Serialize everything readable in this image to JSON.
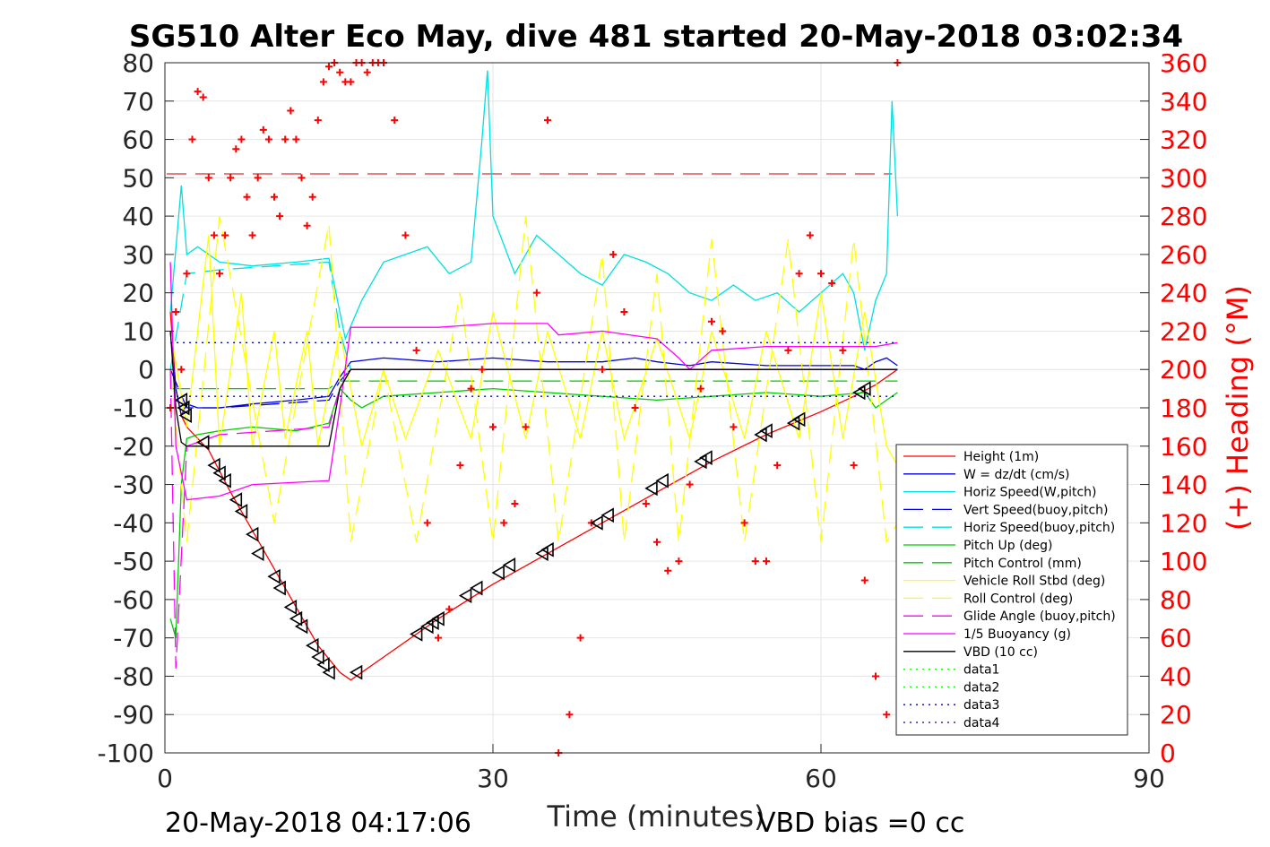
{
  "footer": {
    "timestamp": "20-May-2018 04:17:06",
    "vbd_bias": "VBD bias =0 cc"
  },
  "chart_data": {
    "type": "line",
    "title": "SG510 Alter Eco May, dive 481 started 20-May-2018 03:02:34",
    "xlabel": "Time (minutes)",
    "ylabel": "",
    "y2label": "(+) Heading (°M)",
    "xlim": [
      0,
      90
    ],
    "ylim": [
      -100,
      80
    ],
    "y2lim": [
      0,
      360
    ],
    "xticks": [
      0,
      30,
      60,
      90
    ],
    "yticks": [
      -100,
      -90,
      -80,
      -70,
      -60,
      -50,
      -40,
      -30,
      -20,
      -10,
      0,
      10,
      20,
      30,
      40,
      50,
      60,
      70,
      80
    ],
    "y2ticks": [
      0,
      20,
      40,
      60,
      80,
      100,
      120,
      140,
      160,
      180,
      200,
      220,
      240,
      260,
      280,
      300,
      320,
      340,
      360
    ],
    "grid": true,
    "legend_position": "lower-right",
    "reference_line": {
      "y2": 302,
      "color": "#c00000"
    },
    "colors": {
      "heading": "#ff0000",
      "right_axis": "#ff0000"
    },
    "series": [
      {
        "name": "Height (1m)",
        "color": "#ff0000",
        "style": "solid",
        "axis": "left",
        "x": [
          0.5,
          1,
          1.5,
          2,
          4,
          6,
          8,
          10,
          12,
          14,
          16,
          17,
          18,
          20,
          25,
          30,
          35,
          40,
          45,
          50,
          55,
          60,
          63,
          65,
          67
        ],
        "y": [
          15,
          -5,
          -12,
          -15,
          -21,
          -32,
          -42,
          -52,
          -62,
          -72,
          -79,
          -81,
          -79,
          -75,
          -65,
          -56,
          -48,
          -40,
          -32,
          -24,
          -17,
          -11,
          -7,
          -4,
          0
        ]
      },
      {
        "name": "W = dz/dt (cm/s)",
        "color": "#0000dd",
        "style": "solid",
        "axis": "left",
        "x": [
          0.5,
          1,
          1.5,
          2,
          3,
          5,
          8,
          12,
          15,
          16,
          17,
          20,
          25,
          30,
          35,
          40,
          43,
          45,
          48,
          50,
          55,
          60,
          63,
          64,
          65,
          66,
          67
        ],
        "y": [
          10,
          -5,
          -12,
          -9,
          -10,
          -10,
          -9,
          -8,
          -7,
          -2,
          2,
          3,
          2,
          3,
          2,
          2,
          3,
          2,
          1,
          2,
          1,
          1,
          1,
          0,
          2,
          3,
          1
        ]
      },
      {
        "name": "Horiz Speed(W,pitch)",
        "color": "#00e0e0",
        "style": "solid",
        "axis": "left",
        "x": [
          0.5,
          1.5,
          2,
          3,
          5,
          8,
          12,
          15,
          16,
          16.5,
          18,
          20,
          22,
          24,
          26,
          28,
          29,
          29.5,
          30,
          32,
          34,
          36,
          38,
          40,
          42,
          44,
          46,
          48,
          50,
          52,
          54,
          56,
          58,
          60,
          62,
          63,
          64,
          65,
          66,
          66.5,
          67
        ],
        "y": [
          15,
          48,
          30,
          32,
          28,
          27,
          28,
          29,
          15,
          8,
          18,
          28,
          30,
          32,
          25,
          28,
          60,
          78,
          40,
          25,
          35,
          30,
          25,
          22,
          30,
          28,
          25,
          20,
          18,
          22,
          18,
          20,
          15,
          20,
          25,
          20,
          5,
          18,
          25,
          70,
          40
        ]
      },
      {
        "name": "Vert Speed(buoy,pitch)",
        "color": "#0000dd",
        "style": "dashed",
        "axis": "left",
        "x": [
          0.5,
          2,
          5,
          10,
          15,
          16,
          17,
          30,
          45,
          60,
          67
        ],
        "y": [
          0,
          -10,
          -10,
          -9,
          -8,
          -3,
          0,
          0,
          0,
          0,
          0
        ]
      },
      {
        "name": "Horiz Speed(buoy,pitch)",
        "color": "#00e0e0",
        "style": "dashed",
        "axis": "left",
        "x": [
          0.5,
          2,
          5,
          10,
          15,
          16,
          17,
          30,
          45,
          60,
          67
        ],
        "y": [
          0,
          25,
          26,
          27,
          28,
          10,
          0,
          0,
          0,
          0,
          0
        ]
      },
      {
        "name": "Pitch Up (deg)",
        "color": "#00cc00",
        "style": "solid",
        "axis": "left",
        "x": [
          0.5,
          1,
          1.5,
          2,
          3,
          5,
          8,
          12,
          15,
          16,
          17,
          18,
          20,
          25,
          30,
          35,
          40,
          45,
          50,
          55,
          60,
          64,
          65,
          66,
          67
        ],
        "y": [
          -65,
          -70,
          -30,
          -18,
          -17,
          -16,
          -15,
          -16,
          -14,
          -5,
          -8,
          -10,
          -7,
          -6,
          -5,
          -6,
          -7,
          -8,
          -7,
          -6,
          -7,
          -6,
          -10,
          -8,
          -6
        ]
      },
      {
        "name": "Pitch Control (mm)",
        "color": "#00cc00",
        "style": "dashed",
        "axis": "left",
        "x": [
          0.5,
          2,
          15,
          16,
          30,
          45,
          60,
          67
        ],
        "y": [
          -5,
          -5,
          -5,
          -3,
          -3,
          -3,
          -3,
          -3
        ]
      },
      {
        "name": "Vehicle Roll Stbd (deg)",
        "color": "#ffff00",
        "style": "solid",
        "axis": "left",
        "x": [
          0.5,
          2,
          4,
          5,
          7,
          8,
          10,
          11,
          13,
          14,
          16,
          18,
          20,
          22,
          25,
          28,
          30,
          33,
          35,
          38,
          40,
          42,
          45,
          48,
          50,
          53,
          55,
          58,
          60,
          62,
          64,
          66,
          67
        ],
        "y": [
          10,
          -15,
          35,
          -20,
          20,
          -20,
          10,
          -18,
          10,
          -20,
          10,
          -20,
          0,
          -18,
          5,
          -18,
          15,
          -18,
          10,
          -18,
          10,
          -18,
          8,
          -18,
          10,
          -18,
          10,
          -18,
          20,
          -18,
          15,
          -20,
          -25
        ]
      },
      {
        "name": "Roll Control (deg)",
        "color": "#ffff00",
        "style": "dashed",
        "axis": "left",
        "x": [
          0.5,
          2,
          5,
          10,
          15,
          17,
          20,
          23,
          27,
          30,
          33,
          36,
          40,
          42,
          45,
          47,
          50,
          53,
          57,
          60,
          63,
          66,
          67
        ],
        "y": [
          0,
          -45,
          40,
          -40,
          38,
          -45,
          0,
          -45,
          20,
          -45,
          40,
          -45,
          30,
          -45,
          25,
          -45,
          34,
          -45,
          34,
          -45,
          34,
          -45,
          -40
        ]
      },
      {
        "name": "Glide Angle (buoy,pitch)",
        "color": "#ff00ff",
        "style": "dashed",
        "axis": "left",
        "x": [
          0.5,
          1,
          2,
          5,
          10,
          15,
          16,
          17,
          30,
          45,
          60,
          67
        ],
        "y": [
          0,
          -78,
          -20,
          -17,
          -16,
          -15,
          -5,
          0,
          0,
          0,
          0,
          0
        ]
      },
      {
        "name": "1/5 Buoyancy (g)",
        "color": "#ff00ff",
        "style": "solid",
        "axis": "left",
        "x": [
          0.5,
          1,
          2,
          5,
          8,
          15,
          16,
          17,
          20,
          25,
          30,
          35,
          36,
          40,
          45,
          47,
          48,
          50,
          55,
          60,
          65,
          67
        ],
        "y": [
          28,
          -20,
          -34,
          -33,
          -30,
          -29,
          -10,
          11,
          11,
          11,
          12,
          12,
          9,
          10,
          8,
          3,
          0,
          5,
          6,
          6,
          6,
          7
        ]
      },
      {
        "name": "VBD (10 cc)",
        "color": "#000000",
        "style": "solid",
        "axis": "left",
        "x": [
          0.5,
          1,
          1.5,
          2,
          15,
          16,
          17,
          30,
          45,
          60,
          67
        ],
        "y": [
          10,
          -10,
          -19,
          -20,
          -20,
          -5,
          0,
          0,
          0,
          0,
          0
        ]
      },
      {
        "name": "data1",
        "color": "#00ff00",
        "style": "dotted",
        "axis": "left",
        "x": [],
        "y": []
      },
      {
        "name": "data2",
        "color": "#00ff00",
        "style": "dotted",
        "axis": "left",
        "x": [],
        "y": []
      },
      {
        "name": "data3",
        "color": "#000099",
        "style": "dotted",
        "axis": "left",
        "x": [
          0.5,
          67
        ],
        "y": [
          7,
          7
        ]
      },
      {
        "name": "data4",
        "color": "#000099",
        "style": "dotted",
        "axis": "left",
        "x": [
          0.5,
          67
        ],
        "y": [
          -7,
          -7
        ]
      }
    ],
    "heading_markers": {
      "axis": "right",
      "color": "#ff0000",
      "marker": "+",
      "x": [
        0.5,
        1,
        1.5,
        2,
        2.5,
        3,
        3.5,
        4,
        4.5,
        5,
        5.5,
        6,
        6.5,
        7,
        7.5,
        8,
        8.5,
        9,
        9.5,
        10,
        10.5,
        11,
        11.5,
        12,
        12.5,
        13,
        13.5,
        14,
        14.5,
        15,
        15.5,
        16,
        16.5,
        17,
        17.5,
        18,
        18.5,
        19,
        19.5,
        20,
        21,
        22,
        23,
        24,
        25,
        26,
        27,
        28,
        29,
        30,
        31,
        32,
        33,
        34,
        35,
        36,
        37,
        38,
        39,
        40,
        41,
        42,
        43,
        44,
        45,
        46,
        47,
        48,
        49,
        50,
        51,
        52,
        53,
        54,
        55,
        56,
        57,
        58,
        59,
        60,
        61,
        62,
        63,
        64,
        65,
        66,
        67
      ],
      "y": [
        180,
        230,
        200,
        250,
        320,
        345,
        342,
        300,
        270,
        250,
        270,
        300,
        315,
        320,
        290,
        270,
        300,
        325,
        320,
        290,
        280,
        320,
        335,
        320,
        300,
        275,
        290,
        330,
        350,
        358,
        360,
        355,
        350,
        350,
        360,
        360,
        355,
        360,
        360,
        360,
        330,
        270,
        210,
        120,
        60,
        75,
        150,
        190,
        200,
        170,
        120,
        130,
        170,
        240,
        330,
        0,
        20,
        60,
        120,
        200,
        260,
        230,
        180,
        130,
        110,
        95,
        100,
        140,
        190,
        225,
        220,
        170,
        120,
        100,
        100,
        150,
        210,
        250,
        270,
        250,
        245,
        210,
        150,
        90,
        40,
        20,
        360
      ]
    },
    "triangle_markers": {
      "axis": "left",
      "color": "#000000",
      "x": [
        1.5,
        1.7,
        1.9,
        3.5,
        4.5,
        5,
        5.5,
        6.5,
        7,
        8,
        8.5,
        10,
        10.5,
        11.5,
        12,
        12.5,
        13.5,
        14,
        14.5,
        15,
        17.5,
        23,
        24,
        24.5,
        25,
        27.5,
        28.5,
        30.5,
        31.5,
        34.5,
        35,
        39.5,
        40.5,
        44.5,
        45.5,
        49,
        49.5,
        54.5,
        55,
        57.5,
        58,
        63.5,
        64
      ],
      "y": [
        -8,
        -10,
        -12,
        -19,
        -25,
        -27,
        -29,
        -34,
        -37,
        -43,
        -48,
        -54,
        -57,
        -62,
        -65,
        -67,
        -72,
        -75,
        -77,
        -79,
        -79,
        -69,
        -67,
        -66,
        -65,
        -59,
        -57,
        -53,
        -51,
        -48,
        -47,
        -40,
        -38,
        -31,
        -29,
        -24,
        -23,
        -17,
        -16,
        -14,
        -13,
        -6,
        -5
      ]
    }
  }
}
